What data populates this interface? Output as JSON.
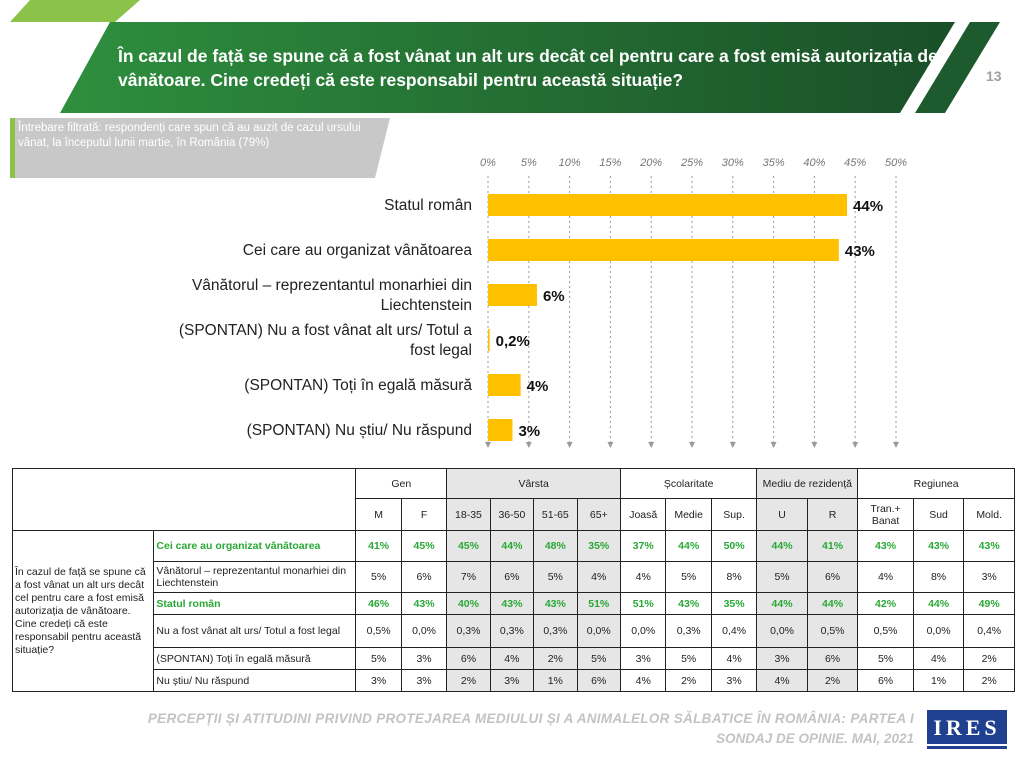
{
  "header": {
    "title": "În cazul de față se spune că a fost  vânat un alt urs decât cel pentru care a fost emisă autorizația de vânătoare. Cine credeți că este responsabil  pentru această situație?",
    "page_number": "13"
  },
  "filter_note": "Întrebare filtrată: respondenți care spun că au auzit de cazul ursului vânat, la începutul lunii martie, în România (79%)",
  "chart_data": {
    "type": "bar",
    "orientation": "horizontal",
    "categories": [
      "Statul român",
      "Cei care au organizat vânătoarea",
      "Vânătorul – reprezentantul monarhiei din Liechtenstein",
      "(SPONTAN) Nu a fost vânat alt urs/ Totul a fost legal",
      "(SPONTAN) Toți în egală măsură",
      "(SPONTAN) Nu știu/ Nu răspund"
    ],
    "category_lines": [
      [
        "Statul român"
      ],
      [
        "Cei care au organizat vânătoarea"
      ],
      [
        "Vânătorul – reprezentantul monarhiei din",
        "Liechtenstein"
      ],
      [
        "(SPONTAN) Nu a fost vânat alt urs/ Totul a",
        "fost legal"
      ],
      [
        "(SPONTAN) Toți în egală măsură"
      ],
      [
        "(SPONTAN) Nu știu/ Nu răspund"
      ]
    ],
    "values": [
      44,
      43,
      6,
      0.2,
      4,
      3
    ],
    "value_labels": [
      "44%",
      "43%",
      "6%",
      "0,2%",
      "4%",
      "3%"
    ],
    "ticks": [
      "0%",
      "5%",
      "10%",
      "15%",
      "20%",
      "25%",
      "30%",
      "35%",
      "40%",
      "45%",
      "50%"
    ],
    "xlim": [
      0,
      50
    ],
    "color": "#ffc000",
    "grid": true
  },
  "table": {
    "groups": [
      "Gen",
      "Vârsta",
      "Școlaritate",
      "Mediu de rezidență",
      "Regiunea"
    ],
    "subheaders": [
      "M",
      "F",
      "18-35",
      "36-50",
      "51-65",
      "65+",
      "Joasă",
      "Medie",
      "Sup.",
      "U",
      "R",
      "Tran.+ Banat",
      "Sud",
      "Mold."
    ],
    "question": "În cazul de față se spune că a fost  vânat un alt urs decât cel pentru care a fost emisă autorizația de vânătoare. Cine credeți că este responsabil  pentru această situație?",
    "rows": [
      {
        "label": "Cei care au organizat vânătoarea",
        "highlight": true,
        "values": [
          "41%",
          "45%",
          "45%",
          "44%",
          "48%",
          "35%",
          "37%",
          "44%",
          "50%",
          "44%",
          "41%",
          "43%",
          "43%",
          "43%"
        ]
      },
      {
        "label": "Vânătorul – reprezentantul monarhiei din Liechtenstein",
        "highlight": false,
        "values": [
          "5%",
          "6%",
          "7%",
          "6%",
          "5%",
          "4%",
          "4%",
          "5%",
          "8%",
          "5%",
          "6%",
          "4%",
          "8%",
          "3%"
        ]
      },
      {
        "label": "Statul român",
        "highlight": true,
        "values": [
          "46%",
          "43%",
          "40%",
          "43%",
          "43%",
          "51%",
          "51%",
          "43%",
          "35%",
          "44%",
          "44%",
          "42%",
          "44%",
          "49%"
        ]
      },
      {
        "label": "Nu a fost vânat alt urs/ Totul a fost legal",
        "highlight": false,
        "values": [
          "0,5%",
          "0,0%",
          "0,3%",
          "0,3%",
          "0,3%",
          "0,0%",
          "0,0%",
          "0,3%",
          "0,4%",
          "0,0%",
          "0,5%",
          "0,5%",
          "0,0%",
          "0,4%"
        ]
      },
      {
        "label": "(SPONTAN) Toți în egală măsură",
        "highlight": false,
        "values": [
          "5%",
          "3%",
          "6%",
          "4%",
          "2%",
          "5%",
          "3%",
          "5%",
          "4%",
          "3%",
          "6%",
          "5%",
          "4%",
          "2%"
        ]
      },
      {
        "label": "Nu știu/ Nu răspund",
        "highlight": false,
        "values": [
          "3%",
          "3%",
          "2%",
          "3%",
          "1%",
          "6%",
          "4%",
          "2%",
          "3%",
          "4%",
          "2%",
          "6%",
          "1%",
          "2%"
        ]
      }
    ]
  },
  "footer": {
    "line1": "PERCEPȚII ȘI ATITUDINI PRIVIND PROTEJAREA MEDIULUI ȘI A ANIMALELOR SĂLBATICE ÎN ROMÂNIA: PARTEA I",
    "line2": "SONDAJ DE OPINIE. MAI, 2021",
    "logo": "IRES"
  },
  "colors": {
    "bar": "#ffc000",
    "header_dark_green": "#1d5b2e",
    "header_light_green": "#2e8f3e",
    "accent_green": "#2aa836",
    "gray_band": "#c8c8c8"
  }
}
